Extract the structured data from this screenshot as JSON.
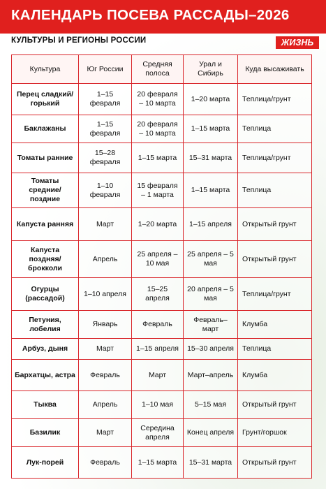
{
  "header": {
    "title": "КАЛЕНДАРЬ ПОСЕВА РАССАДЫ–2026",
    "subtitle": "КУЛЬТУРЫ И РЕГИОНЫ РОССИИ",
    "brand": "ЖИЗНЬ"
  },
  "table": {
    "columns": [
      "Культура",
      "Юг России",
      "Средняя полоса",
      "Урал и Сибирь",
      "Куда высаживать"
    ],
    "rows": [
      [
        "Перец сладкий/ горький",
        "1–15 февраля",
        "20 февраля – 10 марта",
        "1–20 марта",
        "Теплица/грунт"
      ],
      [
        "Баклажаны",
        "1–15 февраля",
        "20 февраля – 10 марта",
        "1–15 марта",
        "Теплица"
      ],
      [
        "Томаты ранние",
        "15–28 февраля",
        "1–15 марта",
        "15–31 марта",
        "Теплица/грунт"
      ],
      [
        "Томаты средние/ поздние",
        "1–10 февраля",
        "15 февраля – 1 марта",
        "1–15 марта",
        "Теплица"
      ],
      [
        "Капуста ранняя",
        "Март",
        "1–20 марта",
        "1–15 апреля",
        "Открытый грунт"
      ],
      [
        "Капуста поздняя/ брокколи",
        "Апрель",
        "25 апреля – 10 мая",
        "25 апреля – 5 мая",
        "Открытый грунт"
      ],
      [
        "Огурцы (рассадой)",
        "1–10 апреля",
        "15–25 апреля",
        "20 апреля – 5 мая",
        "Теплица/грунт"
      ],
      [
        "Петуния, лобелия",
        "Январь",
        "Февраль",
        "Февраль–март",
        "Клумба"
      ],
      [
        "Арбуз, дыня",
        "Март",
        "1–15 апреля",
        "15–30 апреля",
        "Теплица"
      ],
      [
        "Бархатцы, астра",
        "Февраль",
        "Март",
        "Март–апрель",
        "Клумба"
      ],
      [
        "Тыква",
        "Апрель",
        "1–10 мая",
        "5–15 мая",
        "Открытый грунт"
      ],
      [
        "Базилик",
        "Март",
        "Середина апреля",
        "Конец апреля",
        "Грунт/горшок"
      ],
      [
        "Лук-порей",
        "Февраль",
        "1–15 марта",
        "15–31 марта",
        "Открытый грунт"
      ]
    ]
  }
}
